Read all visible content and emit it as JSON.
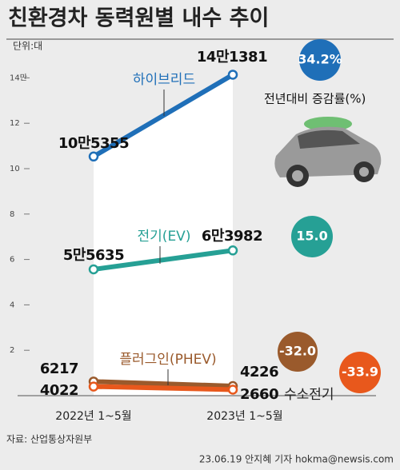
{
  "chart_data": {
    "type": "line",
    "title": "친환경차 동력원별 내수 추이",
    "subtitle": "단위:대",
    "legend_note": "전년대비 증감률(%)",
    "source": "자료: 산업통상자원부",
    "credit": "23.06.19 안지혜 기자 hokma@newsis.com",
    "categories": [
      "2022년 1~5월",
      "2023년 1~5월"
    ],
    "ylim": [
      0,
      15
    ],
    "yticks": [
      2,
      4,
      6,
      8,
      10,
      12,
      {
        "value": 14,
        "label": "14만"
      }
    ],
    "series": [
      {
        "name": "하이브리드",
        "color": "#1f6fb8",
        "values": [
          10.5355,
          14.1381
        ],
        "value_labels": [
          "10만5355",
          "14만1381"
        ],
        "change": "34.2%"
      },
      {
        "name": "전기(EV)",
        "color": "#26a095",
        "values": [
          5.5635,
          6.3982
        ],
        "value_labels": [
          "5만5635",
          "6만3982"
        ],
        "change": "15.0"
      },
      {
        "name": "플러그인(PHEV)",
        "color": "#9a5a2c",
        "values": [
          0.6217,
          0.4226
        ],
        "value_labels": [
          "6217",
          "4226"
        ],
        "change": "-32.0"
      },
      {
        "name": "수소전기",
        "color": "#e8581c",
        "values": [
          0.4022,
          0.266
        ],
        "value_labels": [
          "4022",
          "2660"
        ],
        "change": "-33.9"
      }
    ]
  }
}
